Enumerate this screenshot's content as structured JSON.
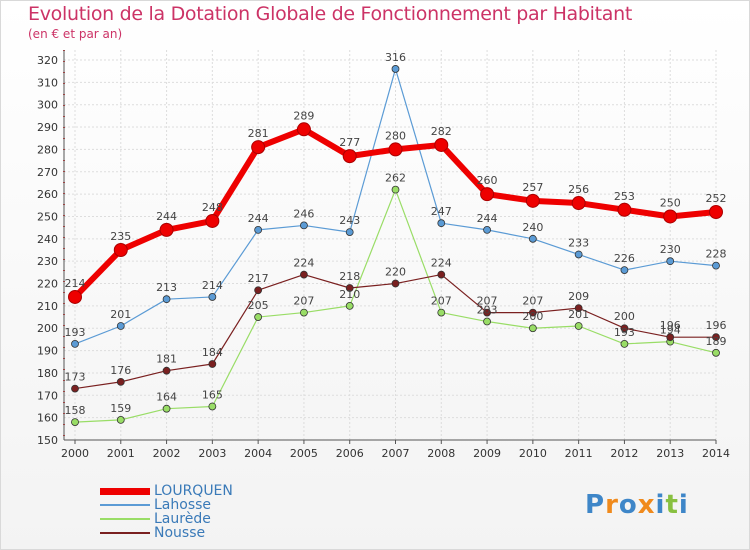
{
  "chart_data": {
    "type": "line",
    "title": "Evolution de la Dotation Globale de Fonctionnement par Habitant",
    "subtitle": "(en € et par an)",
    "xlabel": "",
    "ylabel": "",
    "x": [
      "2000",
      "2001",
      "2002",
      "2003",
      "2004",
      "2005",
      "2006",
      "2007",
      "2008",
      "2009",
      "2010",
      "2011",
      "2012",
      "2013",
      "2014"
    ],
    "ylim": [
      150,
      320
    ],
    "yticks": [
      150,
      160,
      170,
      180,
      190,
      200,
      210,
      220,
      230,
      240,
      250,
      260,
      270,
      280,
      290,
      300,
      310,
      320
    ],
    "legend_position": "bottom-left",
    "grid": true,
    "series": [
      {
        "name": "LOURQUEN",
        "color": "#ee0000",
        "values": [
          214,
          235,
          244,
          248,
          281,
          289,
          277,
          280,
          282,
          260,
          257,
          256,
          253,
          250,
          252
        ]
      },
      {
        "name": "Lahosse",
        "color": "#5b9bd5",
        "values": [
          193,
          201,
          213,
          214,
          244,
          246,
          243,
          316,
          247,
          244,
          240,
          233,
          226,
          230,
          228
        ]
      },
      {
        "name": "Laurède",
        "color": "#99dd66",
        "values": [
          158,
          159,
          164,
          165,
          205,
          207,
          210,
          262,
          207,
          203,
          200,
          201,
          193,
          194,
          189
        ]
      },
      {
        "name": "Nousse",
        "color": "#7a2020",
        "values": [
          173,
          176,
          181,
          184,
          217,
          224,
          218,
          220,
          224,
          207,
          207,
          209,
          200,
          196,
          196
        ]
      }
    ]
  },
  "branding": {
    "logo_text": [
      "P",
      "r",
      "o",
      "x",
      "i",
      "t",
      "i"
    ],
    "logo_colors": [
      "#3e86c8",
      "#f08a1c",
      "#3e86c8",
      "#f08a1c",
      "#3e86c8",
      "#88c040",
      "#3e86c8"
    ]
  }
}
